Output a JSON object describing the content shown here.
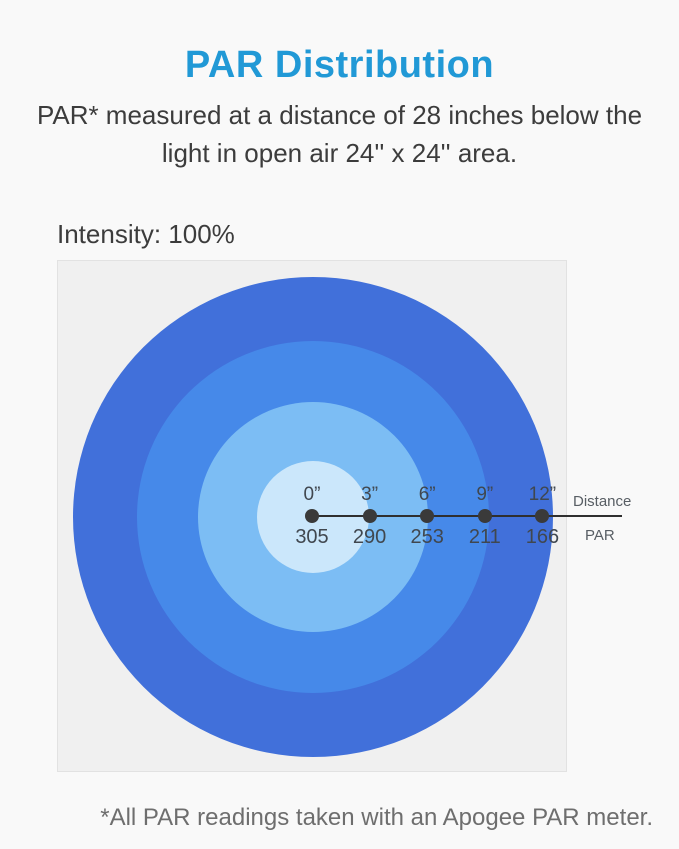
{
  "header": {
    "title": "PAR Distribution",
    "subtitle_line1": "PAR* measured at a distance of 28 inches below the",
    "subtitle_line2": "light in open air 24'' x 24'' area."
  },
  "chart": {
    "intensity_label": "Intensity: 100%",
    "axis": {
      "distance_label": "Distance",
      "par_label": "PAR"
    }
  },
  "chart_data": {
    "type": "line",
    "title": "PAR Distribution",
    "subtitle": "PAR* measured at a distance of 28 inches below the light in open air 24'' x 24'' area.",
    "intensity": "100%",
    "xlabel": "Distance",
    "ylabel": "PAR",
    "x_values_inches": [
      0,
      3,
      6,
      9,
      12
    ],
    "points": [
      {
        "distance": "0”",
        "par": 305
      },
      {
        "distance": "3”",
        "par": 290
      },
      {
        "distance": "6”",
        "par": 253
      },
      {
        "distance": "9”",
        "par": 211
      },
      {
        "distance": "12”",
        "par": 166
      }
    ],
    "rings": [
      {
        "name": "outer-ring",
        "color": "#4170da",
        "radius_px": 240
      },
      {
        "name": "second-ring",
        "color": "#4689e9",
        "radius_px": 176
      },
      {
        "name": "third-ring",
        "color": "#7cbdf4",
        "radius_px": 115
      },
      {
        "name": "center-circle",
        "color": "#cbe7fb",
        "radius_px": 56
      }
    ],
    "legend": false,
    "grid": false
  },
  "footer": {
    "note": "*All PAR readings taken with an Apogee PAR meter."
  },
  "colors": {
    "accent_title": "#2199d6",
    "axis_line": "#2f2f2f",
    "dot": "#3a3a3a",
    "chart_background": "#f0f0f0",
    "page_background": "#f9f9f9"
  }
}
